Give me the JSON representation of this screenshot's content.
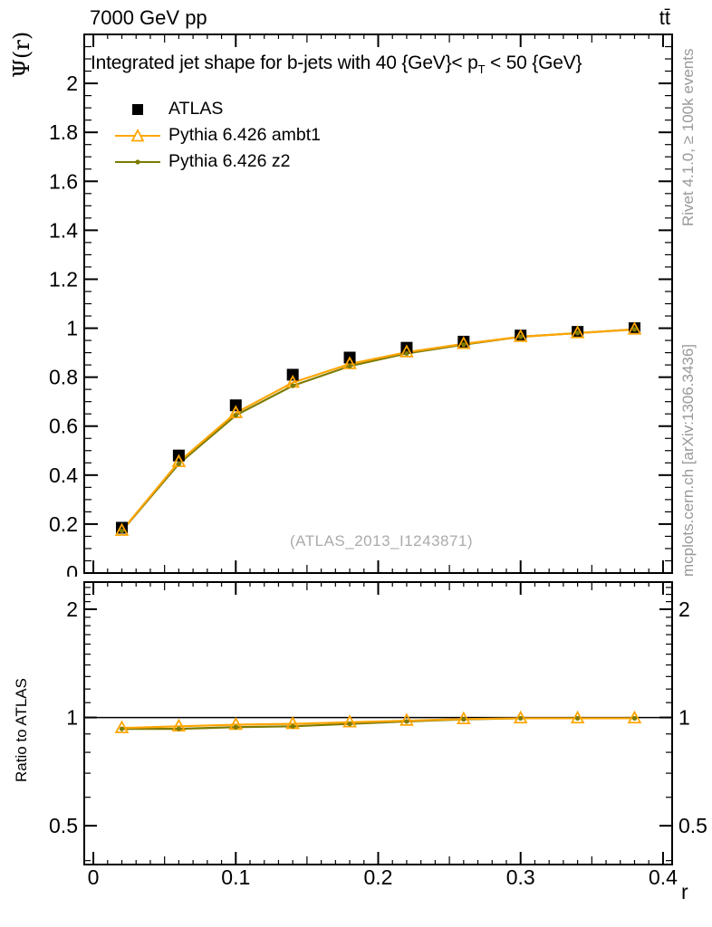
{
  "header": {
    "beam": "7000 GeV pp",
    "process": "tt̄"
  },
  "plot": {
    "title_pre": "Integrated jet shape for b-jets with 40 {GeV}< p",
    "title_sub": "T",
    "title_post": " < 50 {GeV}",
    "ylabel": "Ψ(r)",
    "xlabel": "r",
    "ratio_label": "Ratio to ATLAS",
    "watermark": "(ATLAS_2013_I1243871)",
    "side_text_top": "Rivet 4.1.0, ≥ 100k events",
    "side_text_bottom": "mcplots.cern.ch [arXiv:1306.3436]"
  },
  "legend": [
    {
      "label": "ATLAS",
      "marker": "filled-square",
      "color": "#000000"
    },
    {
      "label": "Pythia 6.426 ambt1",
      "marker": "open-triangle",
      "color": "#ffa500"
    },
    {
      "label": "Pythia 6.426 z2",
      "marker": "filled-dot",
      "color": "#7d7b00"
    }
  ],
  "chart_data": [
    {
      "id": "main",
      "type": "line",
      "title": "Integrated jet shape for b-jets with 40 {GeV}< p_T < 50 {GeV}",
      "xlabel": "r",
      "ylabel": "Ψ(r)",
      "xlim": [
        -0.0064,
        0.4064
      ],
      "ylim": [
        0,
        2.2
      ],
      "grid": false,
      "legend_position": "top-left",
      "x": [
        0.02,
        0.06,
        0.1,
        0.14,
        0.18,
        0.22,
        0.26,
        0.3,
        0.34,
        0.38
      ],
      "xticks": [
        0,
        0.1,
        0.2,
        0.3,
        0.4
      ],
      "xtick_labels": [
        "0",
        "0.1",
        "0.2",
        "0.3",
        "0.4"
      ],
      "yticks": [
        0,
        0.2,
        0.4,
        0.6,
        0.8,
        1.0,
        1.2,
        1.4,
        1.6,
        1.8,
        2.0
      ],
      "ytick_labels": [
        "0",
        "0.2",
        "0.4",
        "0.6",
        "0.8",
        "1",
        "1.2",
        "1.4",
        "1.6",
        "1.8",
        "2"
      ],
      "series": [
        {
          "name": "ATLAS",
          "marker": "filled-square",
          "color": "#000000",
          "line": false,
          "values": [
            0.185,
            0.48,
            0.685,
            0.81,
            0.88,
            0.92,
            0.945,
            0.97,
            0.985,
            1.0
          ]
        },
        {
          "name": "Pythia 6.426 ambt1",
          "marker": "open-triangle",
          "color": "#ffa500",
          "line": true,
          "values": [
            0.173,
            0.454,
            0.654,
            0.778,
            0.854,
            0.902,
            0.936,
            0.965,
            0.98,
            0.995
          ]
        },
        {
          "name": "Pythia 6.426 z2",
          "marker": "filled-dot",
          "color": "#7d7b00",
          "line": true,
          "values": [
            0.172,
            0.446,
            0.644,
            0.765,
            0.845,
            0.897,
            0.933,
            0.965,
            0.98,
            0.995
          ]
        }
      ]
    },
    {
      "id": "ratio",
      "type": "line",
      "ylabel": "Ratio to ATLAS",
      "yscale": "log",
      "ylim": [
        0.39,
        2.38
      ],
      "reference_line": 1.0,
      "x": [
        0.02,
        0.06,
        0.1,
        0.14,
        0.18,
        0.22,
        0.26,
        0.3,
        0.34,
        0.38
      ],
      "yticks": [
        0.5,
        1,
        2
      ],
      "ytick_labels": [
        "0.5",
        "1",
        "2"
      ],
      "yticks_minor": [
        0.4,
        0.6,
        0.7,
        0.8,
        0.9,
        1.1,
        1.2,
        1.3,
        1.4,
        1.5,
        1.6,
        1.7,
        1.8,
        1.9,
        2.1,
        2.2,
        2.3
      ],
      "series": [
        {
          "name": "Pythia 6.426 ambt1",
          "marker": "open-triangle",
          "color": "#ffa500",
          "line": true,
          "values": [
            0.935,
            0.945,
            0.955,
            0.96,
            0.97,
            0.98,
            0.99,
            0.995,
            0.995,
            0.995
          ]
        },
        {
          "name": "Pythia 6.426 z2",
          "marker": "filled-dot",
          "color": "#7d7b00",
          "line": true,
          "values": [
            0.93,
            0.93,
            0.94,
            0.945,
            0.96,
            0.975,
            0.988,
            0.995,
            0.995,
            0.995
          ]
        }
      ]
    }
  ]
}
